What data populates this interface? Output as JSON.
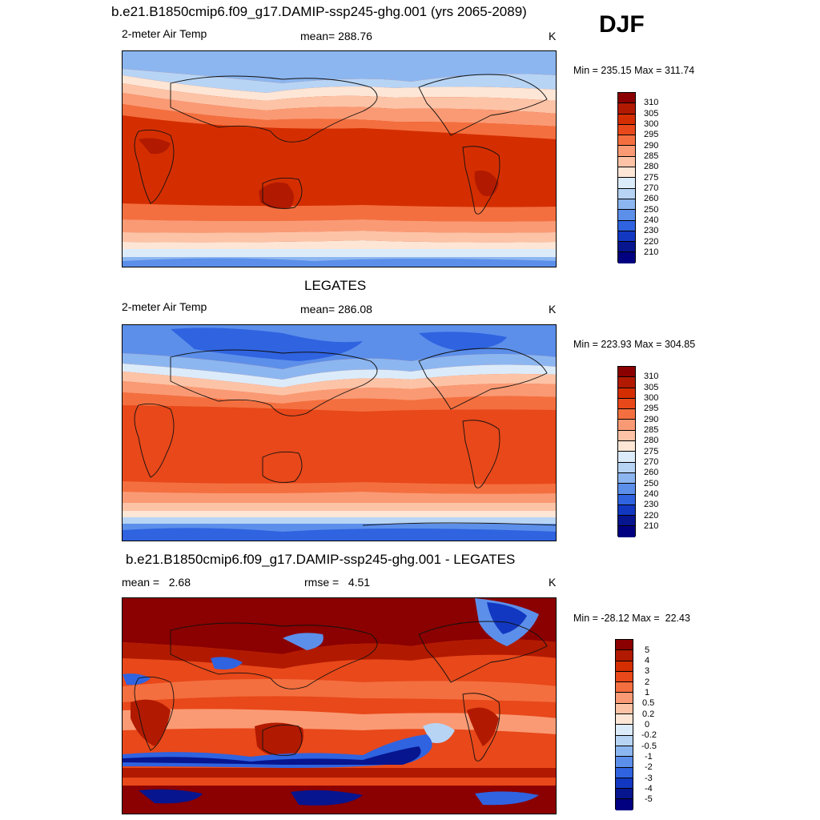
{
  "season": "DJF",
  "panels": [
    {
      "title": "b.e21.B1850cmip6.f09_g17.DAMIP-ssp245-ghg.001 (yrs 2065-2089)",
      "left_label": "2-meter Air Temp",
      "center_label": "mean= 288.76",
      "units": "K",
      "minmax": "Min = 235.15 Max = 311.74",
      "colorbar": {
        "labels": [
          "310",
          "305",
          "300",
          "295",
          "290",
          "285",
          "280",
          "275",
          "270",
          "260",
          "250",
          "240",
          "230",
          "220",
          "210"
        ],
        "colors": [
          "#8b0000",
          "#b11a00",
          "#d42e00",
          "#e8481a",
          "#f46f3f",
          "#fa9a74",
          "#fdc3a6",
          "#fde6d6",
          "#dcebfa",
          "#b7d4f5",
          "#8cb6f0",
          "#5c8fea",
          "#2f63e0",
          "#1238c2",
          "#07158f",
          "#000080"
        ]
      }
    },
    {
      "title": "LEGATES",
      "left_label": "2-meter Air Temp",
      "center_label": "mean= 286.08",
      "units": "K",
      "minmax": "Min = 223.93 Max = 304.85",
      "colorbar": {
        "labels": [
          "310",
          "305",
          "300",
          "295",
          "290",
          "285",
          "280",
          "275",
          "270",
          "260",
          "250",
          "240",
          "230",
          "220",
          "210"
        ],
        "colors": [
          "#8b0000",
          "#b11a00",
          "#d42e00",
          "#e8481a",
          "#f46f3f",
          "#fa9a74",
          "#fdc3a6",
          "#fde6d6",
          "#dcebfa",
          "#b7d4f5",
          "#8cb6f0",
          "#5c8fea",
          "#2f63e0",
          "#1238c2",
          "#07158f",
          "#000080"
        ]
      }
    },
    {
      "title": "b.e21.B1850cmip6.f09_g17.DAMIP-ssp245-ghg.001 - LEGATES",
      "left_label": "mean =   2.68",
      "center_label": "rmse =   4.51",
      "units": "K",
      "minmax": "Min = -28.12 Max =  22.43",
      "colorbar": {
        "labels": [
          "5",
          "4",
          "3",
          "2",
          "1",
          "0.5",
          "0.2",
          "0",
          "-0.2",
          "-0.5",
          "-1",
          "-2",
          "-3",
          "-4",
          "-5"
        ],
        "colors": [
          "#8b0000",
          "#b11a00",
          "#d42e00",
          "#e8481a",
          "#f46f3f",
          "#fa9a74",
          "#fdc3a6",
          "#fde6d6",
          "#dcebfa",
          "#b7d4f5",
          "#8cb6f0",
          "#5c8fea",
          "#2f63e0",
          "#1238c2",
          "#07158f",
          "#000080"
        ]
      }
    }
  ]
}
